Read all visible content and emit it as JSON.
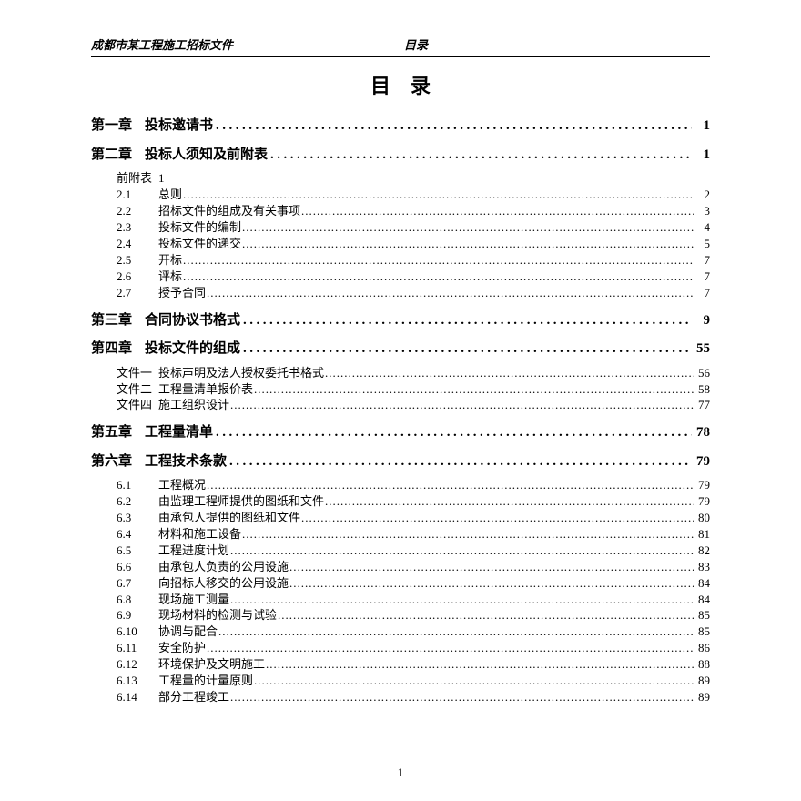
{
  "header": {
    "left": "成都市某工程施工招标文件",
    "right": "目录"
  },
  "title": "目录",
  "leader_chapter": "..........................................................................................",
  "leader_sub": "..........................................................................................................................................................................................",
  "chapters": [
    {
      "num": "第一章",
      "title": "投标邀请书",
      "page": "1",
      "subs": []
    },
    {
      "num": "第二章",
      "title": "投标人须知及前附表",
      "page": "1",
      "subs": [
        {
          "num": "前附表",
          "title": "1",
          "page": "",
          "noleader": true
        },
        {
          "num": "2.1",
          "title": "总则",
          "page": "2"
        },
        {
          "num": "2.2",
          "title": "招标文件的组成及有关事项",
          "page": "3"
        },
        {
          "num": "2.3",
          "title": "投标文件的编制",
          "page": "4"
        },
        {
          "num": "2.4",
          "title": "投标文件的递交",
          "page": "5"
        },
        {
          "num": "2.5",
          "title": "开标",
          "page": "7"
        },
        {
          "num": "2.6",
          "title": "评标",
          "page": "7"
        },
        {
          "num": "2.7",
          "title": "授予合同",
          "page": "7"
        }
      ]
    },
    {
      "num": "第三章",
      "title": "合同协议书格式",
      "page": "9",
      "subs": []
    },
    {
      "num": "第四章",
      "title": "投标文件的组成",
      "page": "55",
      "subs": [
        {
          "num": "文件一",
          "title": "投标声明及法人授权委托书格式",
          "page": "56"
        },
        {
          "num": "文件二",
          "title": "工程量清单报价表",
          "page": "58"
        },
        {
          "num": "文件四",
          "title": "施工组织设计",
          "page": "77"
        }
      ]
    },
    {
      "num": "第五章",
      "title": "工程量清单",
      "page": "78",
      "subs": []
    },
    {
      "num": "第六章",
      "title": "工程技术条款",
      "page": "79",
      "subs": [
        {
          "num": "6.1",
          "title": "工程概况",
          "page": "79"
        },
        {
          "num": "6.2",
          "title": "由监理工程师提供的图纸和文件",
          "page": "79"
        },
        {
          "num": "6.3",
          "title": "由承包人提供的图纸和文件",
          "page": "80"
        },
        {
          "num": "6.4",
          "title": "材料和施工设备",
          "page": "81"
        },
        {
          "num": "6.5",
          "title": "工程进度计划",
          "page": "82"
        },
        {
          "num": "6.6",
          "title": "由承包人负责的公用设施",
          "page": "83"
        },
        {
          "num": "6.7",
          "title": "向招标人移交的公用设施",
          "page": "84"
        },
        {
          "num": "6.8",
          "title": "现场施工测量",
          "page": "84"
        },
        {
          "num": "6.9",
          "title": "现场材料的检测与试验",
          "page": "85"
        },
        {
          "num": "6.10",
          "title": "协调与配合",
          "page": "85"
        },
        {
          "num": "6.11",
          "title": "安全防护",
          "page": "86"
        },
        {
          "num": "6.12",
          "title": "环境保护及文明施工",
          "page": "88"
        },
        {
          "num": "6.13",
          "title": "工程量的计量原则",
          "page": "89"
        },
        {
          "num": "6.14",
          "title": "部分工程竣工",
          "page": "89"
        }
      ]
    }
  ],
  "footer_page": "1",
  "colors": {
    "text": "#000000",
    "bg": "#ffffff"
  }
}
